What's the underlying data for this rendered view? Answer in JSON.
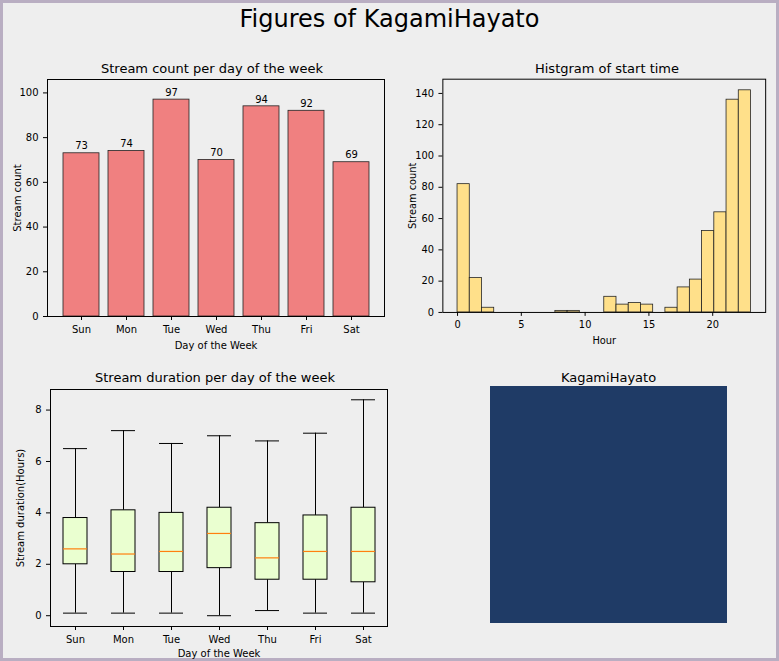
{
  "title": "Figures of KagamiHayato",
  "chart_data": [
    {
      "type": "bar",
      "title": "Stream count per day of the week",
      "x_label": "Day of the Week",
      "y_label": "Stream count",
      "categories": [
        "Sun",
        "Mon",
        "Tue",
        "Wed",
        "Thu",
        "Fri",
        "Sat"
      ],
      "values": [
        73,
        74,
        97,
        70,
        94,
        92,
        69
      ],
      "color": "#f08080",
      "data_labels": true,
      "ylim": [
        0,
        106
      ],
      "yticks": [
        0,
        20,
        40,
        60,
        80,
        100
      ]
    },
    {
      "type": "histogram",
      "title": "Histgram of start time",
      "x_label": "Hour",
      "y_label": "Stream count",
      "bins": [
        0,
        0.9583,
        1.9167,
        2.875,
        3.8333,
        4.7917,
        5.75,
        6.7083,
        7.6667,
        8.625,
        9.5833,
        10.5417,
        11.5,
        12.4583,
        13.4167,
        14.375,
        15.3333,
        16.2917,
        17.25,
        18.2083,
        19.1667,
        20.125,
        21.0833,
        22.0417,
        23
      ],
      "counts": [
        82,
        22,
        3,
        0,
        0,
        0,
        0,
        0,
        1,
        1,
        0,
        0,
        10,
        5,
        6,
        5,
        0,
        3,
        16,
        21,
        52,
        64,
        136,
        142
      ],
      "color": "#ffe08a",
      "xlim": [
        -1.15,
        24.15
      ],
      "xticks": [
        0,
        5,
        10,
        15,
        20
      ],
      "ylim": [
        0,
        149.1
      ],
      "yticks": [
        0,
        20,
        40,
        60,
        80,
        100,
        120,
        140
      ]
    },
    {
      "type": "box",
      "title": "Stream duration per day of the week",
      "x_label": "Day of the Week",
      "y_label": "Stream duration(Hours)",
      "categories": [
        "Sun",
        "Mon",
        "Tue",
        "Wed",
        "Thu",
        "Fri",
        "Sat"
      ],
      "whisker_low": [
        0.1,
        0.1,
        0.1,
        0.0,
        0.2,
        0.1,
        0.1
      ],
      "q1": [
        2.0,
        1.7,
        1.7,
        1.85,
        1.4,
        1.4,
        1.3
      ],
      "median": [
        2.6,
        2.4,
        2.5,
        3.2,
        2.25,
        2.5,
        2.5
      ],
      "q3": [
        3.8,
        4.1,
        4.0,
        4.2,
        3.6,
        3.9,
        4.2
      ],
      "whisker_high": [
        6.5,
        7.2,
        6.7,
        7.0,
        6.8,
        7.1,
        8.4
      ],
      "color": "#eaffd0",
      "ylim": [
        -0.42,
        8.8
      ],
      "yticks": [
        0,
        2,
        4,
        6,
        8
      ]
    },
    {
      "type": "image",
      "title": "KagamiHayato"
    }
  ]
}
